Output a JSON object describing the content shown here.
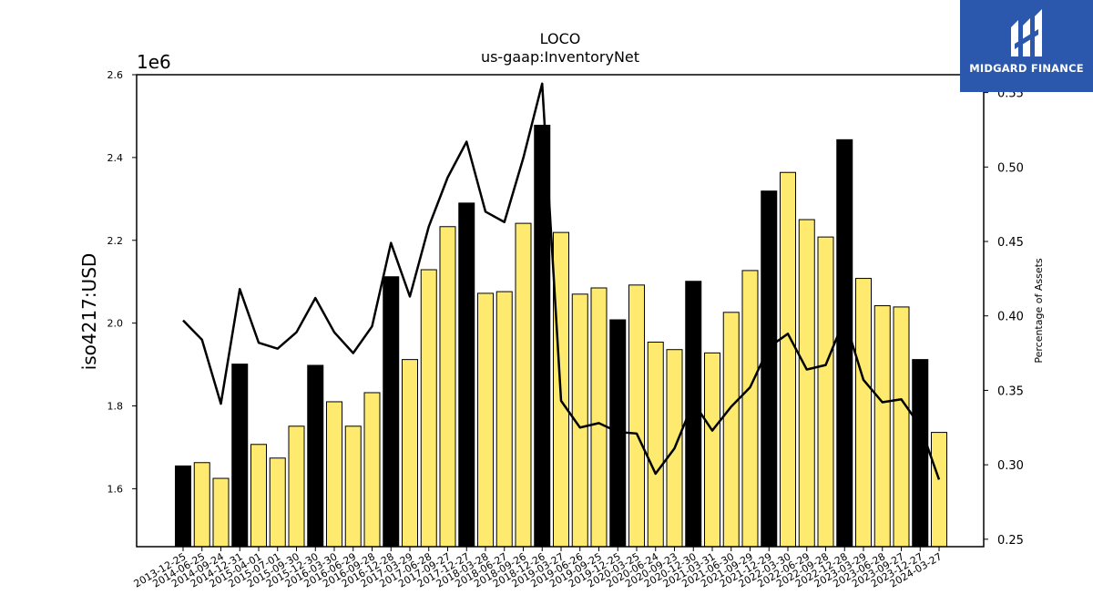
{
  "chart_data": {
    "type": "bar",
    "title": "LOCO",
    "subtitle": "us-gaap:InventoryNet",
    "ylabel": "iso4217:USD",
    "y_offset_label": "1e6",
    "y2label": "Percentage of Assets",
    "ylim": [
      1.46,
      2.6
    ],
    "y2lim": [
      0.245,
      0.562
    ],
    "yticks": [
      "1.6",
      "1.8",
      "2.0",
      "2.2",
      "2.4",
      "2.6"
    ],
    "y2ticks": [
      "0.25",
      "0.30",
      "0.35",
      "0.40",
      "0.45",
      "0.50",
      "0.55"
    ],
    "categories": [
      "2013-12-25",
      "2014-06-25",
      "2014-09-24",
      "2014-12-31",
      "2015-04-01",
      "2015-07-01",
      "2015-09-30",
      "2015-12-30",
      "2016-03-30",
      "2016-06-29",
      "2016-09-28",
      "2016-12-28",
      "2017-03-29",
      "2017-06-28",
      "2017-09-27",
      "2017-12-27",
      "2018-03-28",
      "2018-06-27",
      "2018-09-26",
      "2018-12-26",
      "2019-03-27",
      "2019-06-26",
      "2019-09-25",
      "2019-12-25",
      "2020-03-25",
      "2020-06-24",
      "2020-09-23",
      "2020-12-30",
      "2021-03-31",
      "2021-06-30",
      "2021-09-29",
      "2021-12-29",
      "2022-03-30",
      "2022-06-29",
      "2022-09-28",
      "2022-12-28",
      "2023-03-29",
      "2023-06-28",
      "2023-09-27",
      "2023-12-27",
      "2024-03-27"
    ],
    "series": [
      {
        "values": [
          1.655,
          1.663,
          1.625,
          1.901,
          1.707,
          1.674,
          1.751,
          1.898,
          1.81,
          1.751,
          1.832,
          2.112,
          1.912,
          2.129,
          2.233,
          2.29,
          2.072,
          2.076,
          2.241,
          2.478,
          2.219,
          2.07,
          2.085,
          2.008,
          2.092,
          1.954,
          1.936,
          2.101,
          1.928,
          2.026,
          2.127,
          2.319,
          2.364,
          2.25,
          2.208,
          2.443,
          2.108,
          2.042,
          2.039,
          1.912,
          1.736
        ],
        "bar_colors": [
          "black",
          "yellow",
          "yellow",
          "black",
          "yellow",
          "yellow",
          "yellow",
          "black",
          "yellow",
          "yellow",
          "yellow",
          "black",
          "yellow",
          "yellow",
          "yellow",
          "black",
          "yellow",
          "yellow",
          "yellow",
          "black",
          "yellow",
          "yellow",
          "yellow",
          "black",
          "yellow",
          "yellow",
          "yellow",
          "black",
          "yellow",
          "yellow",
          "yellow",
          "black",
          "yellow",
          "yellow",
          "yellow",
          "black",
          "yellow",
          "yellow",
          "yellow",
          "black",
          "yellow"
        ]
      },
      {
        "axis": "right",
        "type": "line",
        "values": [
          0.397,
          0.384,
          0.341,
          0.418,
          0.382,
          0.378,
          0.389,
          0.412,
          0.389,
          0.375,
          0.393,
          0.449,
          0.413,
          0.46,
          0.493,
          0.517,
          0.47,
          0.463,
          0.506,
          0.556,
          0.343,
          0.325,
          0.328,
          0.322,
          0.321,
          0.294,
          0.311,
          0.342,
          0.323,
          0.339,
          0.352,
          0.379,
          0.388,
          0.364,
          0.367,
          0.398,
          0.357,
          0.342,
          0.344,
          0.326,
          0.29
        ]
      }
    ],
    "colors": {
      "yellow": "#fdea6f",
      "black": "#000000",
      "line": "#000000"
    },
    "grid": false
  },
  "logo": {
    "text": "MIDGARD FINANCE",
    "background": "#2b58ad"
  }
}
